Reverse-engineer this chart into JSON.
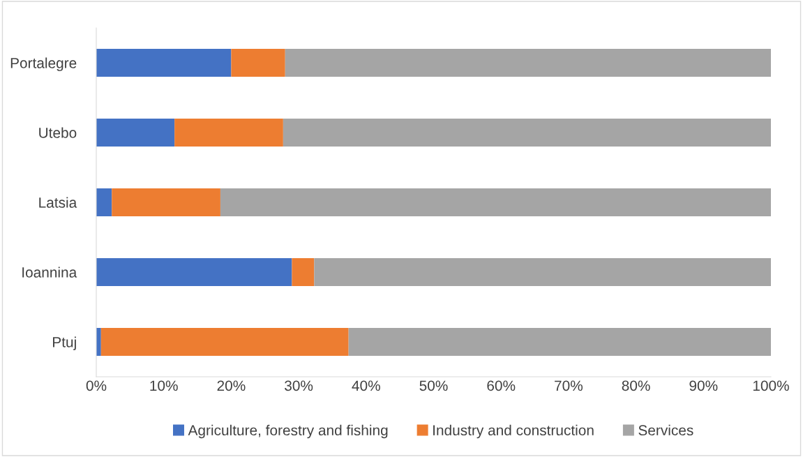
{
  "chart_data": {
    "type": "bar",
    "orientation": "horizontal",
    "stacked": true,
    "categories": [
      "Portalegre",
      "Utebo",
      "Latsia",
      "Ioannina",
      "Ptuj"
    ],
    "series": [
      {
        "name": "Agriculture, forestry and fishing",
        "color": "#4472c4",
        "values": [
          20.0,
          11.6,
          2.3,
          29.0,
          0.7
        ]
      },
      {
        "name": "Industry and construction",
        "color": "#ed7d31",
        "values": [
          8.0,
          16.1,
          16.1,
          3.3,
          36.7
        ]
      },
      {
        "name": "Services",
        "color": "#a5a5a5",
        "values": [
          72.0,
          72.3,
          81.6,
          67.7,
          62.6
        ]
      }
    ],
    "xlim": [
      0,
      100
    ],
    "xticks": [
      {
        "value": 0,
        "label": "0%"
      },
      {
        "value": 10,
        "label": "10%"
      },
      {
        "value": 20,
        "label": "20%"
      },
      {
        "value": 30,
        "label": "30%"
      },
      {
        "value": 40,
        "label": "40%"
      },
      {
        "value": 50,
        "label": "50%"
      },
      {
        "value": 60,
        "label": "60%"
      },
      {
        "value": 70,
        "label": "70%"
      },
      {
        "value": 80,
        "label": "80%"
      },
      {
        "value": 90,
        "label": "90%"
      },
      {
        "value": 100,
        "label": "100%"
      }
    ],
    "grid": false,
    "legend": "bottom"
  }
}
